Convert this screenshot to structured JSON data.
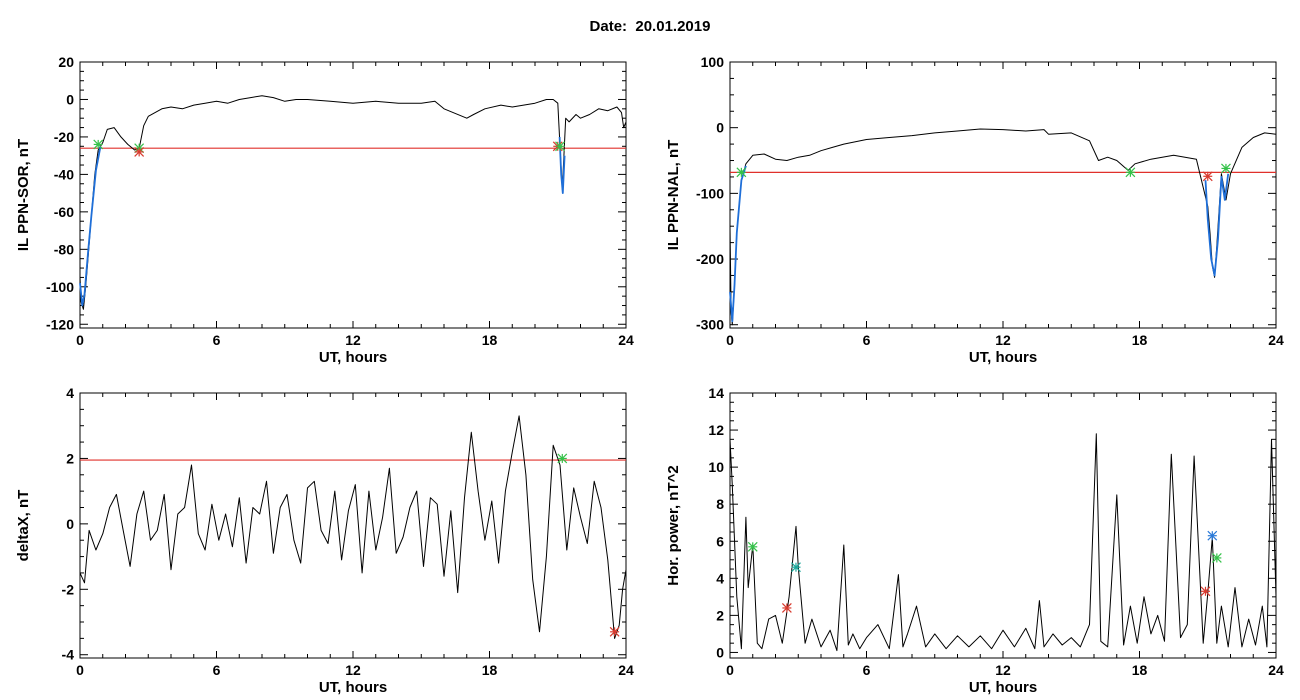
{
  "page": {
    "title": "Date:  20.01.2019"
  },
  "colors": {
    "trace": "#000000",
    "highlight": "#1f6fd8",
    "threshold": "#e0312b",
    "green_marker": "#35c24a",
    "red_marker": "#d83a2e",
    "teal_marker": "#1aa79a",
    "blue_marker": "#2a7ad8"
  },
  "chart_data": [
    {
      "id": "il-ppn-sor",
      "type": "line",
      "xlabel": "UT, hours",
      "ylabel": "IL PPN-SOR, nT",
      "xlim": [
        0,
        24
      ],
      "ylim": [
        -122,
        20
      ],
      "xticks": [
        0,
        6,
        12,
        18,
        24
      ],
      "yticks": [
        -120,
        -100,
        -80,
        -60,
        -40,
        -20,
        0,
        20
      ],
      "threshold": -26,
      "series": [
        {
          "style": "trace",
          "x": [
            0,
            0.05,
            0.15,
            0.25,
            0.35,
            0.5,
            0.65,
            0.8,
            1.0,
            1.2,
            1.5,
            1.8,
            2.1,
            2.4,
            2.6,
            2.8,
            3.0,
            3.3,
            3.6,
            4.0,
            4.5,
            5.0,
            5.5,
            6.0,
            6.5,
            7.0,
            7.5,
            8.0,
            8.5,
            9.0,
            9.5,
            10.0,
            11.0,
            12.0,
            13.0,
            14.0,
            15.0,
            15.6,
            16.0,
            17.0,
            17.3,
            17.8,
            18.5,
            19.0,
            19.5,
            20.0,
            20.5,
            20.8,
            21.0,
            21.1,
            21.2,
            21.35,
            21.5,
            21.8,
            22.0,
            22.4,
            22.8,
            23.2,
            23.6,
            23.8,
            23.9,
            24.0
          ],
          "y": [
            -95,
            -108,
            -112,
            -100,
            -85,
            -62,
            -40,
            -27,
            -23,
            -16,
            -15,
            -20,
            -24,
            -27,
            -26,
            -14,
            -9,
            -7,
            -5,
            -4,
            -5,
            -3,
            -2,
            -1,
            -2,
            0,
            1,
            2,
            1,
            -1,
            0,
            0,
            -1,
            -2,
            -1,
            -2,
            -2,
            -1,
            -5,
            -10,
            -8,
            -5,
            -3,
            -4,
            -3,
            -2,
            0,
            0,
            -2,
            -25,
            -48,
            -10,
            -12,
            -8,
            -10,
            -8,
            -5,
            -6,
            -4,
            -7,
            -15,
            -12
          ]
        },
        {
          "style": "highlight",
          "x": [
            0,
            0.1,
            0.2,
            0.35,
            0.5,
            0.7,
            0.9
          ],
          "y": [
            -98,
            -110,
            -104,
            -82,
            -62,
            -38,
            -25
          ]
        },
        {
          "style": "highlight",
          "x": [
            21.08,
            21.15,
            21.22,
            21.3
          ],
          "y": [
            -20,
            -40,
            -50,
            -30
          ]
        }
      ],
      "markers": [
        {
          "x": 0.8,
          "y": -24,
          "color": "green_marker"
        },
        {
          "x": 2.6,
          "y": -26,
          "color": "green_marker"
        },
        {
          "x": 2.6,
          "y": -28,
          "color": "red_marker"
        },
        {
          "x": 21.0,
          "y": -25,
          "color": "red_marker"
        },
        {
          "x": 21.1,
          "y": -25,
          "color": "green_marker"
        }
      ]
    },
    {
      "id": "il-ppn-nal",
      "type": "line",
      "xlabel": "UT, hours",
      "ylabel": "IL PPN-NAL, nT",
      "xlim": [
        0,
        24
      ],
      "ylim": [
        -305,
        100
      ],
      "xticks": [
        0,
        6,
        12,
        18,
        24
      ],
      "yticks": [
        -300,
        -200,
        -100,
        0,
        100
      ],
      "threshold": -68,
      "series": [
        {
          "style": "trace",
          "x": [
            0,
            0.05,
            0.1,
            0.2,
            0.3,
            0.5,
            0.7,
            1.0,
            1.5,
            2.0,
            2.5,
            3.0,
            3.5,
            4.0,
            4.5,
            5.0,
            6.0,
            7.0,
            8.0,
            9.0,
            10.0,
            11.0,
            12.0,
            13.0,
            13.8,
            14.0,
            15.0,
            15.8,
            16.2,
            16.6,
            17.0,
            17.5,
            17.8,
            18.5,
            19.5,
            20.5,
            21.0,
            21.1,
            21.2,
            21.3,
            21.4,
            21.6,
            21.8,
            22.0,
            22.5,
            23.0,
            23.5,
            24.0
          ],
          "y": [
            -150,
            -280,
            -300,
            -240,
            -160,
            -80,
            -55,
            -42,
            -40,
            -48,
            -50,
            -45,
            -42,
            -35,
            -30,
            -25,
            -18,
            -15,
            -12,
            -8,
            -5,
            -2,
            -3,
            -5,
            -3,
            -10,
            -8,
            -20,
            -50,
            -45,
            -50,
            -65,
            -55,
            -48,
            -42,
            -48,
            -120,
            -160,
            -210,
            -228,
            -180,
            -70,
            -110,
            -70,
            -30,
            -15,
            -8,
            -10
          ]
        },
        {
          "style": "highlight",
          "x": [
            0,
            0.1,
            0.2,
            0.3,
            0.5,
            0.7
          ],
          "y": [
            -250,
            -295,
            -240,
            -160,
            -80,
            -58
          ]
        },
        {
          "style": "highlight",
          "x": [
            20.9,
            21.0,
            21.15,
            21.3,
            21.45,
            21.6,
            21.75,
            21.9
          ],
          "y": [
            -80,
            -140,
            -200,
            -225,
            -170,
            -75,
            -110,
            -70
          ]
        }
      ],
      "markers": [
        {
          "x": 0.5,
          "y": -68,
          "color": "green_marker"
        },
        {
          "x": 17.6,
          "y": -68,
          "color": "green_marker"
        },
        {
          "x": 21.0,
          "y": -74,
          "color": "red_marker"
        },
        {
          "x": 21.8,
          "y": -62,
          "color": "green_marker"
        }
      ]
    },
    {
      "id": "delta-x",
      "type": "line",
      "xlabel": "UT, hours",
      "ylabel": "deltaX, nT",
      "xlim": [
        0,
        24
      ],
      "ylim": [
        -4.1,
        4
      ],
      "xticks": [
        0,
        6,
        12,
        18,
        24
      ],
      "yticks": [
        -4,
        -2,
        0,
        2,
        4
      ],
      "threshold": 1.95,
      "series": [
        {
          "style": "trace",
          "x": [
            0,
            0.2,
            0.4,
            0.7,
            1.0,
            1.3,
            1.6,
            1.9,
            2.2,
            2.5,
            2.8,
            3.1,
            3.4,
            3.7,
            4.0,
            4.3,
            4.6,
            4.9,
            5.2,
            5.5,
            5.8,
            6.1,
            6.4,
            6.7,
            7.0,
            7.3,
            7.6,
            7.9,
            8.2,
            8.5,
            8.8,
            9.1,
            9.4,
            9.7,
            10.0,
            10.3,
            10.6,
            10.9,
            11.2,
            11.5,
            11.8,
            12.1,
            12.4,
            12.7,
            13.0,
            13.3,
            13.6,
            13.9,
            14.2,
            14.5,
            14.8,
            15.1,
            15.4,
            15.7,
            16.0,
            16.3,
            16.6,
            16.9,
            17.2,
            17.5,
            17.8,
            18.1,
            18.4,
            18.7,
            19.0,
            19.3,
            19.6,
            19.9,
            20.2,
            20.5,
            20.8,
            21.1,
            21.4,
            21.7,
            22.0,
            22.3,
            22.6,
            22.9,
            23.2,
            23.5,
            23.7,
            23.85,
            24.0
          ],
          "y": [
            -1.5,
            -1.8,
            -0.2,
            -0.8,
            -0.3,
            0.5,
            0.9,
            -0.2,
            -1.3,
            0.3,
            1.0,
            -0.5,
            -0.2,
            0.9,
            -1.4,
            0.3,
            0.5,
            1.8,
            -0.3,
            -0.8,
            0.6,
            -0.5,
            0.3,
            -0.7,
            0.8,
            -1.2,
            0.5,
            0.3,
            1.3,
            -0.9,
            0.5,
            0.9,
            -0.5,
            -1.2,
            1.1,
            1.3,
            -0.2,
            -0.6,
            1.0,
            -1.1,
            0.4,
            1.2,
            -1.5,
            1.0,
            -0.8,
            0.2,
            1.7,
            -0.9,
            -0.4,
            0.5,
            1.0,
            -1.3,
            0.8,
            0.6,
            -1.6,
            0.4,
            -2.1,
            0.8,
            2.8,
            1.0,
            -0.5,
            0.7,
            -1.2,
            1.0,
            2.2,
            3.3,
            1.5,
            -1.7,
            -3.3,
            -1.0,
            2.4,
            1.8,
            -0.8,
            1.1,
            0.2,
            -0.6,
            1.3,
            0.5,
            -1.1,
            -3.5,
            -3.1,
            -2.0,
            -1.4
          ]
        }
      ],
      "markers": [
        {
          "x": 21.2,
          "y": 2.0,
          "color": "green_marker"
        },
        {
          "x": 23.5,
          "y": -3.3,
          "color": "red_marker"
        }
      ]
    },
    {
      "id": "hor-power",
      "type": "line",
      "xlabel": "UT, hours",
      "ylabel": "Hor. power, nT^2",
      "xlim": [
        0,
        24
      ],
      "ylim": [
        -0.3,
        14
      ],
      "xticks": [
        0,
        6,
        12,
        18,
        24
      ],
      "yticks": [
        0,
        2,
        4,
        6,
        8,
        10,
        12,
        14
      ],
      "series": [
        {
          "style": "trace",
          "x": [
            0,
            0.1,
            0.3,
            0.5,
            0.7,
            0.8,
            1.0,
            1.2,
            1.4,
            1.7,
            2.0,
            2.3,
            2.6,
            2.9,
            3.0,
            3.3,
            3.6,
            4.0,
            4.4,
            4.7,
            5.0,
            5.2,
            5.4,
            5.7,
            6.0,
            6.5,
            7.0,
            7.4,
            7.6,
            7.8,
            8.2,
            8.6,
            9.0,
            9.5,
            10.0,
            10.5,
            11.0,
            11.5,
            12.0,
            12.5,
            13.0,
            13.4,
            13.6,
            13.8,
            14.2,
            14.6,
            15.0,
            15.4,
            15.8,
            16.1,
            16.3,
            16.6,
            17.0,
            17.3,
            17.6,
            17.9,
            18.2,
            18.5,
            18.8,
            19.1,
            19.4,
            19.8,
            20.1,
            20.4,
            20.8,
            21.0,
            21.2,
            21.4,
            21.6,
            21.9,
            22.2,
            22.5,
            22.8,
            23.1,
            23.4,
            23.6,
            23.8,
            24.0
          ],
          "y": [
            11.5,
            9.0,
            3.0,
            0.2,
            7.3,
            3.5,
            5.8,
            0.5,
            0.2,
            1.8,
            2.0,
            0.5,
            3.0,
            6.8,
            4.6,
            0.5,
            1.8,
            0.3,
            1.2,
            0.1,
            5.8,
            0.4,
            1.0,
            0.2,
            0.8,
            1.5,
            0.2,
            4.2,
            0.3,
            1.0,
            2.5,
            0.3,
            1.0,
            0.2,
            0.9,
            0.3,
            0.9,
            0.2,
            1.2,
            0.3,
            1.3,
            0.2,
            2.8,
            0.3,
            1.0,
            0.4,
            0.8,
            0.3,
            1.5,
            11.8,
            0.6,
            0.3,
            8.5,
            0.4,
            2.5,
            0.5,
            3.0,
            1.0,
            2.0,
            0.6,
            10.7,
            0.8,
            1.5,
            10.6,
            0.5,
            3.2,
            6.2,
            0.5,
            2.5,
            0.3,
            3.5,
            0.3,
            1.8,
            0.4,
            2.5,
            0.3,
            11.5,
            3.0
          ]
        }
      ],
      "markers": [
        {
          "x": 1.0,
          "y": 5.7,
          "color": "green_marker"
        },
        {
          "x": 2.5,
          "y": 2.4,
          "color": "red_marker"
        },
        {
          "x": 2.9,
          "y": 4.6,
          "color": "teal_marker"
        },
        {
          "x": 20.9,
          "y": 3.3,
          "color": "red_marker"
        },
        {
          "x": 21.2,
          "y": 6.3,
          "color": "blue_marker"
        },
        {
          "x": 21.4,
          "y": 5.1,
          "color": "green_marker"
        }
      ]
    }
  ]
}
